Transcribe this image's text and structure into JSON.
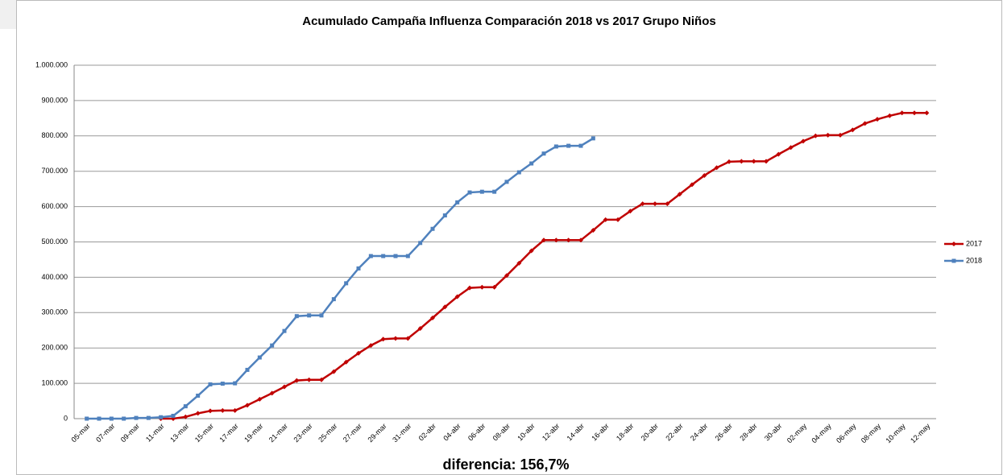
{
  "chart_data": {
    "type": "line",
    "title": "Acumulado Campaña Influenza Comparación 2018 vs 2017  Grupo Niños",
    "annotation": "diferencia: 156,7%",
    "categories": [
      "05-mar",
      null,
      "07-mar",
      null,
      "09-mar",
      null,
      "11-mar",
      null,
      "13-mar",
      null,
      "15-mar",
      null,
      "17-mar",
      null,
      "19-mar",
      null,
      "21-mar",
      null,
      "23-mar",
      null,
      "25-mar",
      null,
      "27-mar",
      null,
      "29-mar",
      null,
      "31-mar",
      null,
      "02-abr",
      null,
      "04-abr",
      null,
      "06-abr",
      null,
      "08-abr",
      null,
      "10-abr",
      null,
      "12-abr",
      null,
      "14-abr",
      null,
      "16-abr",
      null,
      "18-abr",
      null,
      "20-abr",
      null,
      "22-abr",
      null,
      "24-abr",
      null,
      "26-abr",
      null,
      "28-abr",
      null,
      "30-abr",
      null,
      "02-may",
      null,
      "04-may",
      null,
      "06-may",
      null,
      "08-may",
      null,
      "10-may",
      null,
      "12-may"
    ],
    "series": [
      {
        "name": "2017",
        "color": "#c00000",
        "marker": "diamond",
        "values": [
          null,
          null,
          null,
          null,
          null,
          null,
          0,
          0,
          5000,
          15000,
          22000,
          23000,
          23000,
          38000,
          55000,
          72000,
          90000,
          108000,
          110000,
          110000,
          133000,
          160000,
          185000,
          207000,
          225000,
          227000,
          227000,
          255000,
          285000,
          316000,
          345000,
          370000,
          372000,
          372000,
          405000,
          440000,
          475000,
          505000,
          505000,
          505000,
          505000,
          533000,
          563000,
          563000,
          587000,
          608000,
          608000,
          608000,
          635000,
          662000,
          688000,
          710000,
          727000,
          728000,
          728000,
          728000,
          748000,
          767000,
          785000,
          800000,
          802000,
          802000,
          817000,
          835000,
          847000,
          857000,
          865000,
          865000,
          865000
        ]
      },
      {
        "name": "2018",
        "color": "#4f81bd",
        "marker": "square",
        "values": [
          0,
          0,
          0,
          0,
          2000,
          2000,
          4000,
          8000,
          35000,
          65000,
          97000,
          99000,
          100000,
          138000,
          173000,
          207000,
          248000,
          290000,
          292000,
          292000,
          338000,
          383000,
          425000,
          460000,
          460000,
          460000,
          460000,
          497000,
          537000,
          575000,
          612000,
          640000,
          642000,
          642000,
          670000,
          697000,
          722000,
          750000,
          770000,
          772000,
          772000,
          793000,
          null,
          null,
          null,
          null,
          null,
          null,
          null,
          null,
          null,
          null,
          null,
          null,
          null,
          null,
          null,
          null,
          null,
          null,
          null,
          null,
          null,
          null,
          null,
          null,
          null,
          null,
          null
        ]
      }
    ],
    "ylim": [
      0,
      1000000
    ],
    "yticks": [
      0,
      {
        "value": 100000,
        "label": "100.000"
      },
      {
        "value": 200000,
        "label": "200.000"
      },
      {
        "value": 300000,
        "label": "300.000"
      },
      {
        "value": 400000,
        "label": "400.000"
      },
      {
        "value": 500000,
        "label": "500.000"
      },
      {
        "value": 600000,
        "label": "600.000"
      },
      {
        "value": 700000,
        "label": "700.000"
      },
      {
        "value": 800000,
        "label": "800.000"
      },
      {
        "value": 900000,
        "label": "900.000"
      },
      {
        "value": 1000000,
        "label": "1.000.000"
      }
    ],
    "grid": true,
    "legend": "right"
  }
}
